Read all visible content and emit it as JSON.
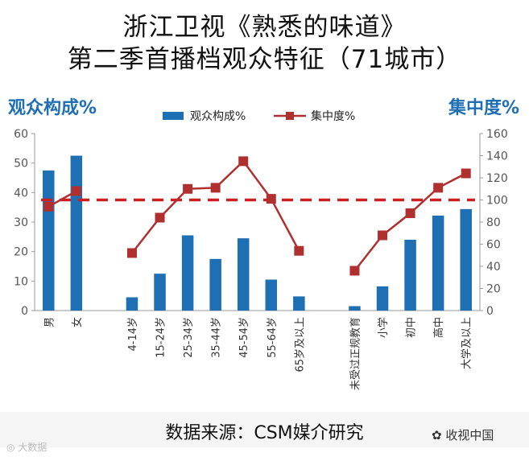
{
  "title": {
    "line1": "浙江卫视《熟悉的味道》",
    "line2": "第二季首播档观众特征（71城市）"
  },
  "left_axis_label": "观众构成%",
  "right_axis_label": "集中度%",
  "footer": "数据来源：CSM媒介研究",
  "watermark_right": "收视中国",
  "watermark_left": "大数据",
  "colors": {
    "bar": "#1f6fb5",
    "line": "#b03030",
    "reference": "#cc1f1f",
    "axis_label": "#1f6fb5"
  },
  "chart_data": {
    "type": "bar",
    "categories": [
      "男",
      "女",
      "",
      "4-14岁",
      "15-24岁",
      "25-34岁",
      "35-44岁",
      "45-54岁",
      "55-64岁",
      "65岁及以上",
      "",
      "未受过正规教育",
      "小学",
      "初中",
      "高中",
      "大学及以上"
    ],
    "series": [
      {
        "name": "观众构成%",
        "type": "bar",
        "axis": "left",
        "values": [
          47.5,
          52.5,
          null,
          4.5,
          12.5,
          25.5,
          17.5,
          24.5,
          10.5,
          4.8,
          null,
          1.5,
          8.2,
          24,
          32.2,
          34.4
        ]
      },
      {
        "name": "集中度%",
        "type": "line",
        "axis": "right",
        "values": [
          94,
          108,
          null,
          52,
          84,
          110,
          111,
          135,
          101,
          54,
          null,
          36,
          68,
          88,
          111,
          124
        ]
      }
    ],
    "reference_line": {
      "axis": "right",
      "value": 100
    },
    "y_left": {
      "min": 0,
      "max": 60,
      "ticks": [
        0,
        10,
        20,
        30,
        40,
        50,
        60
      ]
    },
    "y_right": {
      "min": 0,
      "max": 160,
      "ticks": [
        0,
        20,
        40,
        60,
        80,
        100,
        120,
        140,
        160
      ]
    },
    "grid": false,
    "legend": "top-center"
  }
}
